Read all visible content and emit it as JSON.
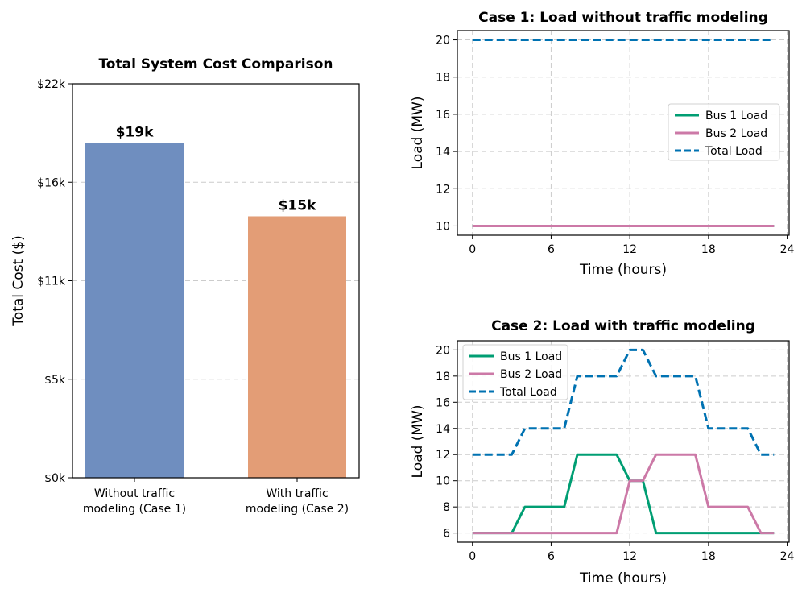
{
  "chart_data": [
    {
      "type": "bar",
      "title": "Total System Cost Comparison",
      "xlabel": "",
      "ylabel": "Total Cost ($)",
      "categories": [
        [
          "Without traffic",
          "modeling (Case 1)"
        ],
        [
          "With traffic",
          "modeling (Case 2)"
        ]
      ],
      "values": [
        18700,
        14600
      ],
      "value_labels": [
        "$19k",
        "$15k"
      ],
      "colors": [
        "#6f8ebf",
        "#e39d76"
      ],
      "ylim": [
        0,
        22000
      ],
      "yticks": [
        0,
        5500,
        11000,
        16500,
        22000
      ],
      "ytick_labels": [
        "$0k",
        "$5k",
        "$11k",
        "$16k",
        "$22k"
      ],
      "grid": "y"
    },
    {
      "type": "line",
      "title": "Case 1: Load without traffic modeling",
      "xlabel": "Time (hours)",
      "ylabel": "Load (MW)",
      "x": [
        0,
        1,
        2,
        3,
        4,
        5,
        6,
        7,
        8,
        9,
        10,
        11,
        12,
        13,
        14,
        15,
        16,
        17,
        18,
        19,
        20,
        21,
        22,
        23
      ],
      "series": [
        {
          "name": "Bus 1 Load",
          "color": "#009e73",
          "style": "solid",
          "values": [
            10,
            10,
            10,
            10,
            10,
            10,
            10,
            10,
            10,
            10,
            10,
            10,
            10,
            10,
            10,
            10,
            10,
            10,
            10,
            10,
            10,
            10,
            10,
            10
          ]
        },
        {
          "name": "Bus 2 Load",
          "color": "#cc79a7",
          "style": "solid",
          "values": [
            10,
            10,
            10,
            10,
            10,
            10,
            10,
            10,
            10,
            10,
            10,
            10,
            10,
            10,
            10,
            10,
            10,
            10,
            10,
            10,
            10,
            10,
            10,
            10
          ]
        },
        {
          "name": "Total Load",
          "color": "#0072b2",
          "style": "dashed",
          "values": [
            20,
            20,
            20,
            20,
            20,
            20,
            20,
            20,
            20,
            20,
            20,
            20,
            20,
            20,
            20,
            20,
            20,
            20,
            20,
            20,
            20,
            20,
            20,
            20
          ]
        }
      ],
      "xlim": [
        -1.15,
        24.15
      ],
      "ylim": [
        9.5,
        20.5
      ],
      "xticks": [
        0,
        6,
        12,
        18,
        24
      ],
      "yticks": [
        10,
        12,
        14,
        16,
        18,
        20
      ],
      "legend": "center-right",
      "grid": true
    },
    {
      "type": "line",
      "title": "Case 2: Load with traffic modeling",
      "xlabel": "Time (hours)",
      "ylabel": "Load (MW)",
      "x": [
        0,
        1,
        2,
        3,
        4,
        5,
        6,
        7,
        8,
        9,
        10,
        11,
        12,
        13,
        14,
        15,
        16,
        17,
        18,
        19,
        20,
        21,
        22,
        23
      ],
      "series": [
        {
          "name": "Bus 1 Load",
          "color": "#009e73",
          "style": "solid",
          "values": [
            6,
            6,
            6,
            6,
            8,
            8,
            8,
            8,
            12,
            12,
            12,
            12,
            10,
            10,
            6,
            6,
            6,
            6,
            6,
            6,
            6,
            6,
            6,
            6
          ]
        },
        {
          "name": "Bus 2 Load",
          "color": "#cc79a7",
          "style": "solid",
          "values": [
            6,
            6,
            6,
            6,
            6,
            6,
            6,
            6,
            6,
            6,
            6,
            6,
            10,
            10,
            12,
            12,
            12,
            12,
            8,
            8,
            8,
            8,
            6,
            6
          ]
        },
        {
          "name": "Total Load",
          "color": "#0072b2",
          "style": "dashed",
          "values": [
            12,
            12,
            12,
            12,
            14,
            14,
            14,
            14,
            18,
            18,
            18,
            18,
            20,
            20,
            18,
            18,
            18,
            18,
            14,
            14,
            14,
            14,
            12,
            12
          ]
        }
      ],
      "xlim": [
        -1.15,
        24.15
      ],
      "ylim": [
        5.3,
        20.7
      ],
      "xticks": [
        0,
        6,
        12,
        18,
        24
      ],
      "yticks": [
        6,
        8,
        10,
        12,
        14,
        16,
        18,
        20
      ],
      "legend": "top-left",
      "grid": true
    }
  ]
}
